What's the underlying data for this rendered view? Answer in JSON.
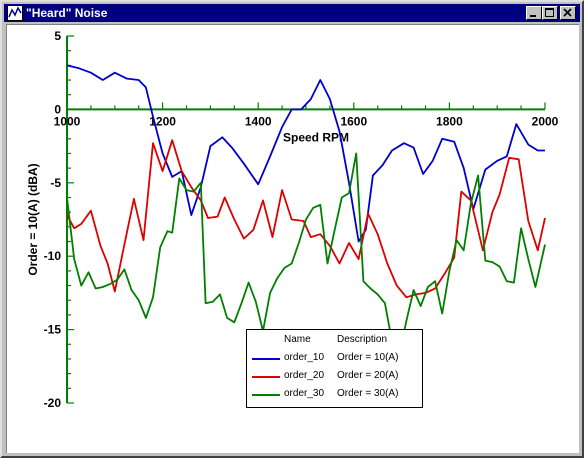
{
  "window": {
    "title": "\"Heard\" Noise"
  },
  "icons": {
    "app": "chart-app-icon",
    "minimize": "minimize-icon",
    "maximize": "maximize-icon",
    "close": "close-icon"
  },
  "legend": {
    "header_name": "Name",
    "header_description": "Description",
    "entries": [
      {
        "name": "order_10",
        "description": "Order = 10(A)",
        "color": "#0000cc"
      },
      {
        "name": "order_20",
        "description": "Order = 20(A)",
        "color": "#dd0000"
      },
      {
        "name": "order_30",
        "description": "Order = 30(A)",
        "color": "#008000"
      }
    ]
  },
  "chart_data": {
    "type": "line",
    "title": "",
    "xlabel": "Speed RPM",
    "ylabel": "Order = 10(A) (dBA)",
    "xlim": [
      1000,
      2000
    ],
    "ylim": [
      -20,
      5
    ],
    "xticks": [
      1000,
      1200,
      1400,
      1600,
      1800,
      2000
    ],
    "yticks": [
      5,
      0,
      -5,
      -10,
      -15,
      -20
    ],
    "axis_color": "#008000",
    "grid": false,
    "legend_position": "bottom-center",
    "series": [
      {
        "name": "order_10",
        "color": "#0000cc",
        "x": [
          1000,
          1025,
          1050,
          1075,
          1100,
          1125,
          1150,
          1165,
          1180,
          1200,
          1220,
          1240,
          1260,
          1280,
          1300,
          1325,
          1345,
          1370,
          1400,
          1425,
          1450,
          1470,
          1490,
          1510,
          1530,
          1550,
          1570,
          1590,
          1610,
          1625,
          1640,
          1660,
          1680,
          1705,
          1725,
          1745,
          1765,
          1785,
          1810,
          1830,
          1850,
          1875,
          1900,
          1920,
          1940,
          1965,
          1985,
          2000
        ],
        "y": [
          3.0,
          2.8,
          2.5,
          2.0,
          2.5,
          2.1,
          2.0,
          1.5,
          -0.5,
          -3.0,
          -4.6,
          -4.2,
          -7.2,
          -5.3,
          -2.5,
          -1.9,
          -2.6,
          -3.7,
          -5.1,
          -3.2,
          -1.2,
          0.0,
          0.0,
          0.7,
          2.0,
          0.7,
          -1.5,
          -5.0,
          -9.0,
          -8.2,
          -4.5,
          -3.8,
          -2.8,
          -2.3,
          -2.6,
          -4.4,
          -3.5,
          -2.0,
          -2.2,
          -4.0,
          -6.8,
          -4.1,
          -3.5,
          -3.2,
          -1.0,
          -2.4,
          -2.8,
          -2.8
        ]
      },
      {
        "name": "order_20",
        "color": "#dd0000",
        "x": [
          1000,
          1015,
          1030,
          1050,
          1070,
          1085,
          1100,
          1120,
          1140,
          1160,
          1180,
          1200,
          1220,
          1240,
          1260,
          1280,
          1295,
          1315,
          1330,
          1350,
          1370,
          1390,
          1410,
          1430,
          1450,
          1470,
          1495,
          1510,
          1530,
          1550,
          1570,
          1590,
          1610,
          1630,
          1650,
          1670,
          1690,
          1710,
          1730,
          1750,
          1770,
          1790,
          1810,
          1825,
          1845,
          1870,
          1890,
          1905,
          1925,
          1945,
          1965,
          1985,
          2000
        ],
        "y": [
          -7.2,
          -8.1,
          -7.8,
          -6.9,
          -9.3,
          -10.5,
          -12.4,
          -9.2,
          -6.1,
          -8.9,
          -2.3,
          -4.2,
          -2.1,
          -4.2,
          -5.3,
          -6.2,
          -7.4,
          -7.3,
          -6.0,
          -7.5,
          -8.8,
          -8.2,
          -6.2,
          -8.7,
          -5.5,
          -7.5,
          -7.6,
          -8.7,
          -8.5,
          -9.3,
          -10.5,
          -9.1,
          -10.2,
          -7.1,
          -8.5,
          -10.5,
          -12.0,
          -12.8,
          -12.6,
          -12.5,
          -12.2,
          -11.2,
          -10.1,
          -5.6,
          -6.2,
          -9.6,
          -7.0,
          -5.8,
          -3.3,
          -3.4,
          -7.6,
          -9.6,
          -7.4
        ]
      },
      {
        "name": "order_30",
        "color": "#008000",
        "x": [
          1000,
          1015,
          1030,
          1045,
          1060,
          1075,
          1090,
          1105,
          1120,
          1135,
          1150,
          1165,
          1180,
          1195,
          1210,
          1220,
          1235,
          1250,
          1265,
          1280,
          1290,
          1305,
          1320,
          1335,
          1350,
          1365,
          1380,
          1395,
          1410,
          1425,
          1440,
          1455,
          1470,
          1485,
          1500,
          1515,
          1530,
          1545,
          1560,
          1575,
          1590,
          1605,
          1620,
          1635,
          1650,
          1665,
          1680,
          1695,
          1710,
          1725,
          1740,
          1755,
          1770,
          1785,
          1800,
          1815,
          1830,
          1845,
          1860,
          1875,
          1890,
          1905,
          1920,
          1935,
          1950,
          1965,
          1980,
          2000
        ],
        "y": [
          -6.0,
          -10.2,
          -12.0,
          -11.1,
          -12.2,
          -12.1,
          -11.9,
          -11.6,
          -10.9,
          -12.3,
          -13.0,
          -14.2,
          -12.8,
          -9.4,
          -8.3,
          -8.4,
          -4.7,
          -5.5,
          -5.6,
          -5.0,
          -13.2,
          -13.1,
          -12.6,
          -14.2,
          -14.5,
          -13.2,
          -11.8,
          -13.1,
          -15.1,
          -12.5,
          -11.5,
          -10.8,
          -10.5,
          -9.1,
          -7.5,
          -6.7,
          -6.5,
          -10.5,
          -8.2,
          -6.0,
          -5.7,
          -3.0,
          -11.7,
          -12.2,
          -12.6,
          -13.2,
          -15.8,
          -16.7,
          -14.4,
          -12.3,
          -13.4,
          -12.1,
          -11.7,
          -13.9,
          -11.0,
          -8.9,
          -9.6,
          -6.4,
          -4.5,
          -10.3,
          -10.4,
          -10.7,
          -11.7,
          -11.8,
          -8.1,
          -10.2,
          -12.1,
          -9.2
        ]
      }
    ]
  }
}
